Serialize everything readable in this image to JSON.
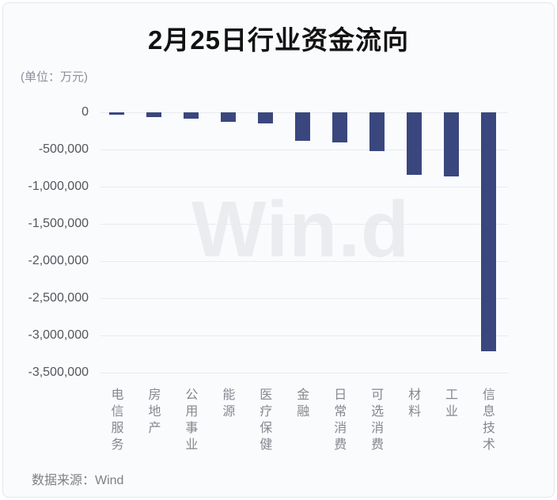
{
  "page": {
    "title": "2月25日行业资金流向",
    "unit_label": "(单位：万元)",
    "source_label": "数据来源：Wind",
    "watermark": "Win.d"
  },
  "colors": {
    "bar": "#3a477e",
    "card_background": "#fafbfd",
    "card_border": "#e4e6eb",
    "gridline": "#e8eaee",
    "y_tick_text": "#53565c",
    "category_text": "#85888f",
    "unit_text": "#8a8f99",
    "title_text": "#121212",
    "source_text": "#808080",
    "watermark_text": "#ebecef"
  },
  "chart_data": {
    "type": "bar",
    "title": "2月25日行业资金流向",
    "unit": "万元",
    "categories": [
      "电信服务",
      "房地产",
      "公用事业",
      "能源",
      "医疗保健",
      "金融",
      "日常消费",
      "可选消费",
      "材料",
      "工业",
      "信息技术"
    ],
    "values": [
      -35000,
      -65000,
      -90000,
      -125000,
      -150000,
      -380000,
      -400000,
      -520000,
      -840000,
      -865000,
      -3210000
    ],
    "ylim": [
      -3500000,
      0
    ],
    "ytick_values": [
      0,
      -500000,
      -1000000,
      -1500000,
      -2000000,
      -2500000,
      -3000000,
      -3500000
    ],
    "ytick_labels": [
      "0",
      "-500,000",
      "-1,000,000",
      "-1,500,000",
      "-2,000,000",
      "-2,500,000",
      "-3,000,000",
      "-3,500,000"
    ],
    "grid": true,
    "legend": false,
    "bar_color": "#3a477e",
    "orientation": "vertical",
    "xlabel": "",
    "ylabel": ""
  }
}
